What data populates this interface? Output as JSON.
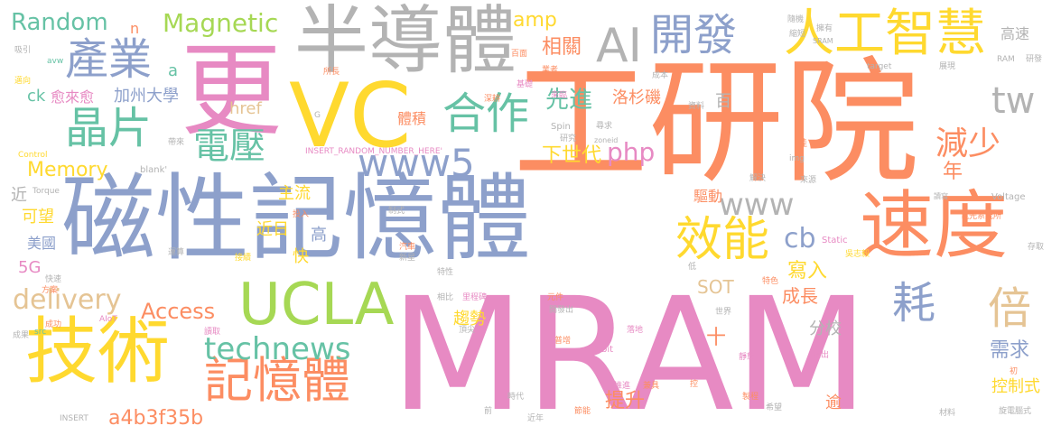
{
  "colors": {
    "pink": "#e78ac3",
    "orange": "#fc8d62",
    "blue": "#8da0cb",
    "green": "#66c2a5",
    "lime": "#a6d854",
    "yellow": "#ffd92f",
    "tan": "#e5c494",
    "gray": "#b3b3b3"
  },
  "words": [
    {
      "text": "MRAM",
      "color": "pink"
    },
    {
      "text": "工研院",
      "color": "orange"
    },
    {
      "text": "磁性記憶體",
      "color": "blue"
    },
    {
      "text": "更",
      "color": "pink"
    },
    {
      "text": "半導體",
      "color": "gray"
    },
    {
      "text": "VC",
      "color": "yellow"
    },
    {
      "text": "技術",
      "color": "yellow"
    },
    {
      "text": "速度",
      "color": "orange"
    },
    {
      "text": "UCLA",
      "color": "lime"
    },
    {
      "text": "人工智慧",
      "color": "yellow"
    },
    {
      "text": "AI",
      "color": "gray"
    },
    {
      "text": "開發",
      "color": "blue"
    },
    {
      "text": "產業",
      "color": "blue"
    },
    {
      "text": "晶片",
      "color": "green"
    },
    {
      "text": "合作",
      "color": "green"
    },
    {
      "text": "記憶體",
      "color": "orange"
    },
    {
      "text": "效能",
      "color": "yellow"
    },
    {
      "text": "technews",
      "color": "green"
    },
    {
      "text": "電壓",
      "color": "green"
    },
    {
      "text": "www5",
      "color": "blue"
    },
    {
      "text": "www",
      "color": "gray"
    },
    {
      "text": "tw",
      "color": "gray"
    },
    {
      "text": "減少",
      "color": "orange"
    },
    {
      "text": "耗",
      "color": "blue"
    },
    {
      "text": "倍",
      "color": "tan"
    },
    {
      "text": "Random",
      "color": "green"
    },
    {
      "text": "Magnetic",
      "color": "lime"
    },
    {
      "text": "Memory",
      "color": "yellow"
    },
    {
      "text": "Access",
      "color": "orange"
    },
    {
      "text": "delivery",
      "color": "tan"
    },
    {
      "text": "cb",
      "color": "blue"
    },
    {
      "text": "php",
      "color": "pink"
    },
    {
      "text": "amp",
      "color": "yellow"
    },
    {
      "text": "先進",
      "color": "green"
    },
    {
      "text": "下世代",
      "color": "yellow"
    },
    {
      "text": "相關",
      "color": "orange"
    },
    {
      "text": "a4b3f35b",
      "color": "orange"
    },
    {
      "text": "SOT",
      "color": "tan"
    },
    {
      "text": "寫入",
      "color": "yellow"
    },
    {
      "text": "成長",
      "color": "orange"
    },
    {
      "text": "需求",
      "color": "blue"
    },
    {
      "text": "控制式",
      "color": "yellow"
    },
    {
      "text": "提升",
      "color": "orange"
    },
    {
      "text": "趨勢",
      "color": "yellow"
    },
    {
      "text": "加州大學",
      "color": "blue"
    },
    {
      "text": "愈來愈",
      "color": "pink"
    },
    {
      "text": "高速",
      "color": "gray"
    },
    {
      "text": "年",
      "color": "orange"
    },
    {
      "text": "洛杉磯",
      "color": "orange"
    },
    {
      "text": "體積",
      "color": "orange"
    },
    {
      "text": "驅動",
      "color": "orange"
    },
    {
      "text": "主流",
      "color": "yellow"
    },
    {
      "text": "近日",
      "color": "yellow"
    },
    {
      "text": "快",
      "color": "yellow"
    },
    {
      "text": "高",
      "color": "blue"
    },
    {
      "text": "可望",
      "color": "yellow"
    },
    {
      "text": "美國",
      "color": "blue"
    },
    {
      "text": "近",
      "color": "gray"
    },
    {
      "text": "5G",
      "color": "pink"
    },
    {
      "text": "ck",
      "color": "green"
    },
    {
      "text": "a",
      "color": "green"
    },
    {
      "text": "n",
      "color": "orange"
    },
    {
      "text": "href",
      "color": "tan"
    },
    {
      "text": "分校",
      "color": "gray"
    },
    {
      "text": "十",
      "color": "orange"
    },
    {
      "text": "百",
      "color": "gray"
    },
    {
      "text": "逾",
      "color": "orange"
    },
    {
      "text": "_blank'",
      "color": "gray"
    },
    {
      "text": "INSERT_RANDOM_NUMBER_HERE'",
      "color": "pink"
    },
    {
      "text": "Spin",
      "color": "gray"
    },
    {
      "text": "Control",
      "color": "yellow"
    },
    {
      "text": "Torque",
      "color": "gray"
    },
    {
      "text": "Orbit",
      "color": "pink"
    },
    {
      "text": "Static",
      "color": "pink"
    },
    {
      "text": "Voltage",
      "color": "gray"
    },
    {
      "text": "target",
      "color": "gray"
    },
    {
      "text": "RAM",
      "color": "gray"
    },
    {
      "text": "SRAM",
      "color": "gray"
    },
    {
      "text": "src",
      "color": "green"
    },
    {
      "text": "AIoT",
      "color": "pink"
    },
    {
      "text": "INSERT",
      "color": "gray"
    },
    {
      "text": "img",
      "color": "gray"
    },
    {
      "text": "G",
      "color": "gray"
    },
    {
      "text": "zoneid",
      "color": "gray"
    },
    {
      "text": "avw",
      "color": "green"
    },
    {
      "text": "吸引",
      "color": "gray"
    },
    {
      "text": "邁向",
      "color": "yellow"
    },
    {
      "text": "所長",
      "color": "orange"
    },
    {
      "text": "基礎",
      "color": "pink"
    },
    {
      "text": "深耕",
      "color": "orange"
    },
    {
      "text": "來臨",
      "color": "pink"
    },
    {
      "text": "尋求",
      "color": "gray"
    },
    {
      "text": "成本",
      "color": "gray"
    },
    {
      "text": "百面",
      "color": "orange"
    },
    {
      "text": "業者",
      "color": "orange"
    },
    {
      "text": "擁有",
      "color": "gray"
    },
    {
      "text": "縮短",
      "color": "gray"
    },
    {
      "text": "隨機",
      "color": "gray"
    },
    {
      "text": "資料",
      "color": "gray"
    },
    {
      "text": "研究",
      "color": "gray"
    },
    {
      "text": "展現",
      "color": "gray"
    },
    {
      "text": "研發",
      "color": "gray"
    },
    {
      "text": "佳",
      "color": "orange"
    },
    {
      "text": "解決",
      "color": "gray"
    },
    {
      "text": "來源",
      "color": "gray"
    },
    {
      "text": "讀寫",
      "color": "gray"
    },
    {
      "text": "電光系統所",
      "color": "orange"
    },
    {
      "text": "存取",
      "color": "gray"
    },
    {
      "text": "帶來",
      "color": "gray"
    },
    {
      "text": "投入",
      "color": "orange"
    },
    {
      "text": "制式",
      "color": "gray"
    },
    {
      "text": "運算",
      "color": "gray"
    },
    {
      "text": "接續",
      "color": "yellow"
    },
    {
      "text": "汽車",
      "color": "orange"
    },
    {
      "text": "新星",
      "color": "gray"
    },
    {
      "text": "特性",
      "color": "gray"
    },
    {
      "text": "低",
      "color": "gray"
    },
    {
      "text": "特色",
      "color": "orange"
    },
    {
      "text": "吳志毅",
      "color": "yellow"
    },
    {
      "text": "快速",
      "color": "gray"
    },
    {
      "text": "方案",
      "color": "orange"
    },
    {
      "text": "相比",
      "color": "gray"
    },
    {
      "text": "里程碑",
      "color": "pink"
    },
    {
      "text": "元件",
      "color": "orange"
    },
    {
      "text": "成功",
      "color": "orange"
    },
    {
      "text": "成果",
      "color": "gray"
    },
    {
      "text": "讀取",
      "color": "pink"
    },
    {
      "text": "頂尖",
      "color": "gray"
    },
    {
      "text": "開發出",
      "color": "gray"
    },
    {
      "text": "世界",
      "color": "gray"
    },
    {
      "text": "落地",
      "color": "pink"
    },
    {
      "text": "靜態",
      "color": "pink"
    },
    {
      "text": "指出",
      "color": "pink"
    },
    {
      "text": "普增",
      "color": "orange"
    },
    {
      "text": "推進",
      "color": "pink"
    },
    {
      "text": "兼具",
      "color": "orange"
    },
    {
      "text": "控",
      "color": "orange"
    },
    {
      "text": "製程",
      "color": "orange"
    },
    {
      "text": "時代",
      "color": "gray"
    },
    {
      "text": "前",
      "color": "gray"
    },
    {
      "text": "近年",
      "color": "gray"
    },
    {
      "text": "節能",
      "color": "orange"
    },
    {
      "text": "希望",
      "color": "gray"
    },
    {
      "text": "材料",
      "color": "gray"
    },
    {
      "text": "旋電腦式",
      "color": "gray"
    },
    {
      "text": "初",
      "color": "orange"
    }
  ]
}
